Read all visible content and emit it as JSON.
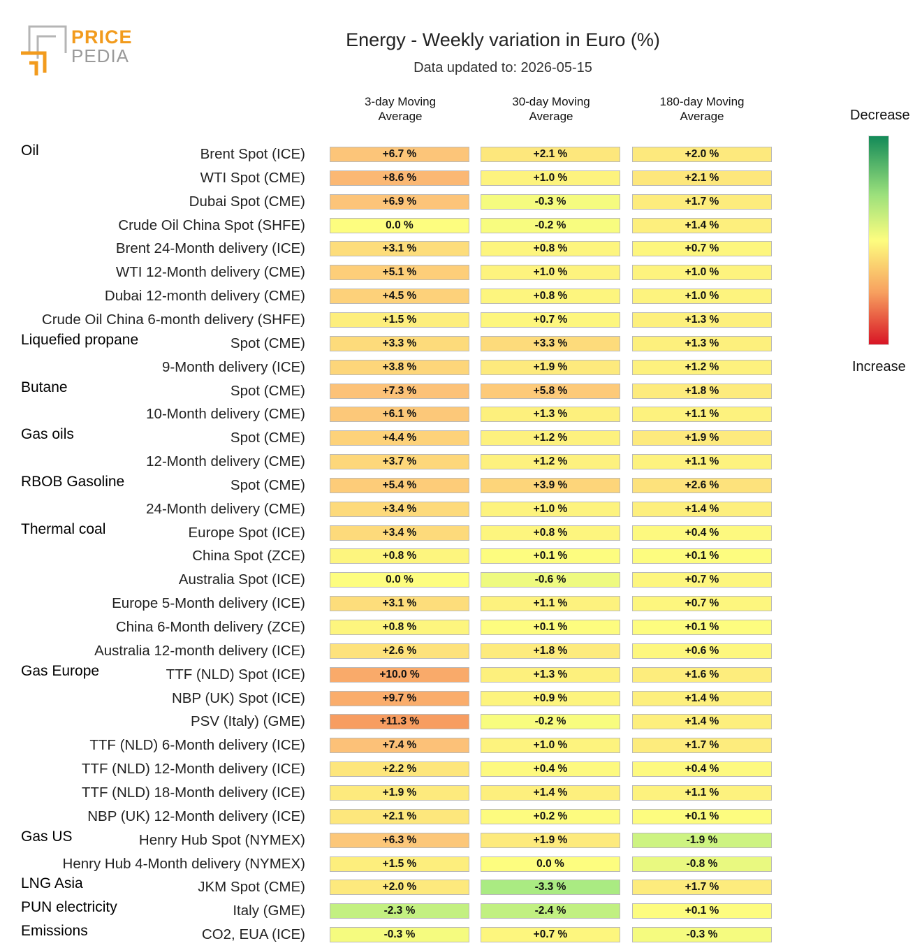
{
  "logo": {
    "line1": "PRICE",
    "line2": "PEDIA"
  },
  "chart_data": {
    "type": "table",
    "title": "Energy - Weekly variation in Euro (%)",
    "subtitle": "Data updated to: 2026-05-15",
    "columns": [
      "3-day Moving Average",
      "30-day Moving Average",
      "180-day Moving Average"
    ],
    "legend": {
      "top": "Decrease",
      "bottom": "Increase",
      "top_color": "#138a58",
      "mid_color": "#fdfd7f",
      "bottom_color": "#d81525"
    },
    "unit": "%",
    "groups": [
      {
        "name": "Oil",
        "rows": [
          {
            "label": "Brent Spot (ICE)",
            "values": [
              6.7,
              2.1,
              2.0
            ]
          },
          {
            "label": "WTI Spot (CME)",
            "values": [
              8.6,
              1.0,
              2.1
            ]
          },
          {
            "label": "Dubai Spot (CME)",
            "values": [
              6.9,
              -0.3,
              1.7
            ]
          },
          {
            "label": "Crude Oil China Spot (SHFE)",
            "values": [
              0.0,
              -0.2,
              1.4
            ]
          },
          {
            "label": "Brent 24-Month delivery (ICE)",
            "values": [
              3.1,
              0.8,
              0.7
            ]
          },
          {
            "label": "WTI 12-Month delivery (CME)",
            "values": [
              5.1,
              1.0,
              1.0
            ]
          },
          {
            "label": "Dubai 12-month delivery (CME)",
            "values": [
              4.5,
              0.8,
              1.0
            ]
          },
          {
            "label": "Crude Oil China 6-month delivery (SHFE)",
            "values": [
              1.5,
              0.7,
              1.3
            ]
          }
        ]
      },
      {
        "name": "Liquefied propane",
        "rows": [
          {
            "label": "Spot (CME)",
            "values": [
              3.3,
              3.3,
              1.3
            ]
          },
          {
            "label": "9-Month delivery (ICE)",
            "values": [
              3.8,
              1.9,
              1.2
            ]
          }
        ]
      },
      {
        "name": "Butane",
        "rows": [
          {
            "label": "Spot (CME)",
            "values": [
              7.3,
              5.8,
              1.8
            ]
          },
          {
            "label": "10-Month delivery (CME)",
            "values": [
              6.1,
              1.3,
              1.1
            ]
          }
        ]
      },
      {
        "name": "Gas oils",
        "rows": [
          {
            "label": "Spot (CME)",
            "values": [
              4.4,
              1.2,
              1.9
            ]
          },
          {
            "label": "12-Month delivery (CME)",
            "values": [
              3.7,
              1.2,
              1.1
            ]
          }
        ]
      },
      {
        "name": "RBOB Gasoline",
        "rows": [
          {
            "label": "Spot (CME)",
            "values": [
              5.4,
              3.9,
              2.6
            ]
          },
          {
            "label": "24-Month delivery (CME)",
            "values": [
              3.4,
              1.0,
              1.4
            ]
          }
        ]
      },
      {
        "name": "Thermal coal",
        "rows": [
          {
            "label": "Europe Spot (ICE)",
            "values": [
              3.4,
              0.8,
              0.4
            ]
          },
          {
            "label": "China Spot (ZCE)",
            "values": [
              0.8,
              0.1,
              0.1
            ]
          },
          {
            "label": "Australia Spot (ICE)",
            "values": [
              0.0,
              -0.6,
              0.7
            ]
          },
          {
            "label": "Europe 5-Month delivery (ICE)",
            "values": [
              3.1,
              1.1,
              0.7
            ]
          },
          {
            "label": "China 6-Month delivery (ZCE)",
            "values": [
              0.8,
              0.1,
              0.1
            ]
          },
          {
            "label": "Australia 12-month delivery (ICE)",
            "values": [
              2.6,
              1.8,
              0.6
            ]
          }
        ]
      },
      {
        "name": "Gas Europe",
        "rows": [
          {
            "label": "TTF (NLD) Spot (ICE)",
            "values": [
              10.0,
              1.3,
              1.6
            ]
          },
          {
            "label": "NBP (UK) Spot (ICE)",
            "values": [
              9.7,
              0.9,
              1.4
            ]
          },
          {
            "label": "PSV (Italy) (GME)",
            "values": [
              11.3,
              -0.2,
              1.4
            ]
          },
          {
            "label": "TTF (NLD) 6-Month delivery (ICE)",
            "values": [
              7.4,
              1.0,
              1.7
            ]
          },
          {
            "label": "TTF (NLD) 12-Month delivery (ICE)",
            "values": [
              2.2,
              0.4,
              0.4
            ]
          },
          {
            "label": "TTF (NLD) 18-Month delivery (ICE)",
            "values": [
              1.9,
              1.4,
              1.1
            ]
          },
          {
            "label": "NBP (UK) 12-Month delivery (ICE)",
            "values": [
              2.1,
              0.2,
              0.1
            ]
          }
        ]
      },
      {
        "name": "Gas US",
        "rows": [
          {
            "label": "Henry Hub Spot (NYMEX)",
            "values": [
              6.3,
              1.9,
              -1.9
            ]
          },
          {
            "label": "Henry Hub 4-Month delivery (NYMEX)",
            "values": [
              1.5,
              0.0,
              -0.8
            ]
          }
        ]
      },
      {
        "name": "LNG Asia",
        "rows": [
          {
            "label": "JKM Spot (CME)",
            "values": [
              2.0,
              -3.3,
              1.7
            ]
          }
        ]
      },
      {
        "name": "PUN electricity",
        "rows": [
          {
            "label": "Italy (GME)",
            "values": [
              -2.3,
              -2.4,
              0.1
            ]
          }
        ]
      },
      {
        "name": "Emissions",
        "rows": [
          {
            "label": "CO2, EUA (ICE)",
            "values": [
              -0.3,
              0.7,
              -0.3
            ]
          }
        ]
      }
    ]
  }
}
